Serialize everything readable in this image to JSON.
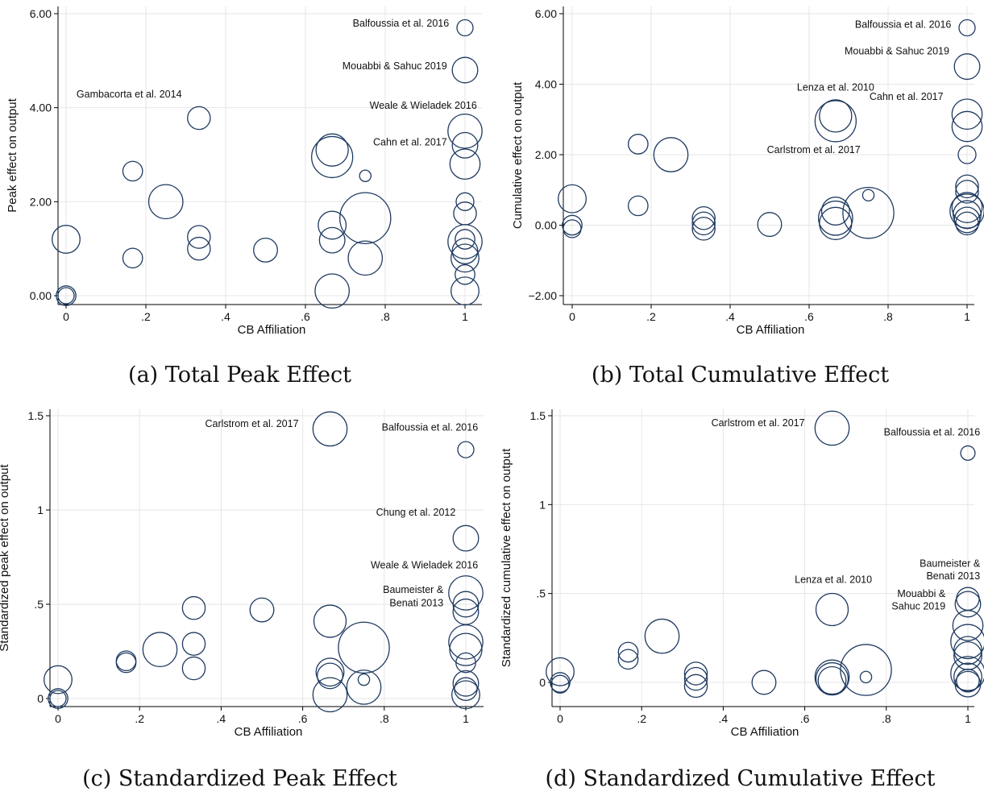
{
  "chart_data": [
    {
      "type": "scatter",
      "caption": "(a) Total Peak Effect",
      "xlabel": "CB Affiliation",
      "ylabel": "Peak effect on output",
      "xlim": [
        0,
        1
      ],
      "ylim": [
        0,
        6
      ],
      "xticks": [
        {
          "v": 0,
          "label": "0"
        },
        {
          "v": 0.2,
          "label": ".2"
        },
        {
          "v": 0.4,
          "label": ".4"
        },
        {
          "v": 0.6,
          "label": ".6"
        },
        {
          "v": 0.8,
          "label": ".8"
        },
        {
          "v": 1,
          "label": "1"
        }
      ],
      "yticks": [
        {
          "v": 0,
          "label": "0.00"
        },
        {
          "v": 2,
          "label": "2.00"
        },
        {
          "v": 4,
          "label": "4.00"
        },
        {
          "v": 6,
          "label": "6.00"
        }
      ],
      "grid": true,
      "points": [
        {
          "x": 0,
          "y": 1.2,
          "w": 3
        },
        {
          "x": 0,
          "y": 0,
          "w": 1.5
        },
        {
          "x": 0,
          "y": 0,
          "w": 1
        },
        {
          "x": 0.167,
          "y": 2.65,
          "w": 1.5
        },
        {
          "x": 0.167,
          "y": 0.8,
          "w": 1.5
        },
        {
          "x": 0.25,
          "y": 2.0,
          "w": 4.5
        },
        {
          "x": 0.333,
          "y": 3.78,
          "w": 2
        },
        {
          "x": 0.333,
          "y": 1.25,
          "w": 2
        },
        {
          "x": 0.333,
          "y": 1.0,
          "w": 2
        },
        {
          "x": 0.5,
          "y": 0.97,
          "w": 2.2
        },
        {
          "x": 0.667,
          "y": 3.1,
          "w": 4
        },
        {
          "x": 0.667,
          "y": 2.95,
          "w": 6.5
        },
        {
          "x": 0.667,
          "y": 1.5,
          "w": 3
        },
        {
          "x": 0.667,
          "y": 1.18,
          "w": 2.5
        },
        {
          "x": 0.667,
          "y": 0.1,
          "w": 4.5
        },
        {
          "x": 0.75,
          "y": 2.55,
          "w": 0.5
        },
        {
          "x": 0.75,
          "y": 1.65,
          "w": 10
        },
        {
          "x": 0.75,
          "y": 0.8,
          "w": 4.5
        },
        {
          "x": 1,
          "y": 5.7,
          "w": 1
        },
        {
          "x": 1,
          "y": 4.8,
          "w": 2.5
        },
        {
          "x": 1,
          "y": 3.5,
          "w": 4.5
        },
        {
          "x": 1,
          "y": 3.2,
          "w": 2.5
        },
        {
          "x": 1,
          "y": 2.8,
          "w": 3.5
        },
        {
          "x": 1,
          "y": 2.0,
          "w": 1.2
        },
        {
          "x": 1,
          "y": 1.75,
          "w": 2
        },
        {
          "x": 1,
          "y": 1.2,
          "w": 1.5
        },
        {
          "x": 1,
          "y": 1.15,
          "w": 4.5
        },
        {
          "x": 1,
          "y": 0.95,
          "w": 2.5
        },
        {
          "x": 1,
          "y": 0.8,
          "w": 3
        },
        {
          "x": 1,
          "y": 0.45,
          "w": 1.5
        },
        {
          "x": 1,
          "y": 0.1,
          "w": 3
        }
      ],
      "annotations": [
        {
          "text": "Balfoussia et al. 2016",
          "x": 0.96,
          "y": 5.73
        },
        {
          "text": "Mouabbi & Sahuc 2019",
          "x": 0.955,
          "y": 4.82
        },
        {
          "text": "Gambacorta et al. 2014",
          "x": 0.29,
          "y": 4.22
        },
        {
          "text": "Weale & Wieladek 2016",
          "x": 1.03,
          "y": 3.98
        },
        {
          "text": "Cahn et al. 2017",
          "x": 0.955,
          "y": 3.2
        }
      ]
    },
    {
      "type": "scatter",
      "caption": "(b) Total Cumulative Effect",
      "xlabel": "CB Affiliation",
      "ylabel": "Cumulative effect on output",
      "xlim": [
        0,
        1
      ],
      "ylim": [
        -2,
        6
      ],
      "xticks": [
        {
          "v": 0,
          "label": "0"
        },
        {
          "v": 0.2,
          "label": ".2"
        },
        {
          "v": 0.4,
          "label": ".4"
        },
        {
          "v": 0.6,
          "label": ".6"
        },
        {
          "v": 0.8,
          "label": ".8"
        },
        {
          "v": 1,
          "label": "1"
        }
      ],
      "yticks": [
        {
          "v": -2,
          "label": "−2.00"
        },
        {
          "v": 0,
          "label": "0.00"
        },
        {
          "v": 2,
          "label": "2.00"
        },
        {
          "v": 4,
          "label": "4.00"
        },
        {
          "v": 6,
          "label": "6.00"
        }
      ],
      "grid": true,
      "points": [
        {
          "x": 0,
          "y": 0.75,
          "w": 3
        },
        {
          "x": 0,
          "y": 0,
          "w": 1.5
        },
        {
          "x": 0,
          "y": -0.1,
          "w": 1.2
        },
        {
          "x": 0.167,
          "y": 2.3,
          "w": 1.5
        },
        {
          "x": 0.167,
          "y": 0.55,
          "w": 1.5
        },
        {
          "x": 0.25,
          "y": 2.0,
          "w": 4.5
        },
        {
          "x": 0.333,
          "y": 0.2,
          "w": 2
        },
        {
          "x": 0.333,
          "y": 0.05,
          "w": 2
        },
        {
          "x": 0.333,
          "y": -0.1,
          "w": 2
        },
        {
          "x": 0.5,
          "y": 0.02,
          "w": 2.2
        },
        {
          "x": 0.667,
          "y": 3.1,
          "w": 4
        },
        {
          "x": 0.667,
          "y": 2.95,
          "w": 6.5
        },
        {
          "x": 0.667,
          "y": 0.4,
          "w": 3
        },
        {
          "x": 0.667,
          "y": 0.2,
          "w": 4.5
        },
        {
          "x": 0.667,
          "y": 0.05,
          "w": 4
        },
        {
          "x": 0.75,
          "y": 0.85,
          "w": 0.5
        },
        {
          "x": 0.75,
          "y": 0.35,
          "w": 10
        },
        {
          "x": 1,
          "y": 5.6,
          "w": 1
        },
        {
          "x": 1,
          "y": 4.5,
          "w": 2.5
        },
        {
          "x": 1,
          "y": 3.15,
          "w": 3.5
        },
        {
          "x": 1,
          "y": 2.8,
          "w": 3.5
        },
        {
          "x": 1,
          "y": 2.0,
          "w": 1.2
        },
        {
          "x": 1,
          "y": 1.1,
          "w": 2
        },
        {
          "x": 1,
          "y": 0.95,
          "w": 2
        },
        {
          "x": 1,
          "y": 0.5,
          "w": 3.5
        },
        {
          "x": 1,
          "y": 0.4,
          "w": 4.5
        },
        {
          "x": 1,
          "y": 0.3,
          "w": 3
        },
        {
          "x": 1,
          "y": 0.15,
          "w": 2.5
        },
        {
          "x": 1,
          "y": 0.05,
          "w": 2
        }
      ],
      "annotations": [
        {
          "text": "Balfoussia et al. 2016",
          "x": 0.96,
          "y": 5.6
        },
        {
          "text": "Mouabbi & Sahuc 2019",
          "x": 0.955,
          "y": 4.85
        },
        {
          "text": "Lenza et al. 2010",
          "x": 0.765,
          "y": 3.82
        },
        {
          "text": "Cahn et al. 2017",
          "x": 0.94,
          "y": 3.55
        },
        {
          "text": "Carlstrom et al. 2017",
          "x": 0.73,
          "y": 2.05
        }
      ]
    },
    {
      "type": "scatter",
      "caption": "(c) Standardized Peak Effect",
      "xlabel": "CB Affiliation",
      "ylabel": "Standardized peak effect on output",
      "xlim": [
        0,
        1
      ],
      "ylim": [
        0,
        1.5
      ],
      "xticks": [
        {
          "v": 0,
          "label": "0"
        },
        {
          "v": 0.2,
          "label": ".2"
        },
        {
          "v": 0.4,
          "label": ".4"
        },
        {
          "v": 0.6,
          "label": ".6"
        },
        {
          "v": 0.8,
          "label": ".8"
        },
        {
          "v": 1,
          "label": "1"
        }
      ],
      "yticks": [
        {
          "v": 0,
          "label": "0"
        },
        {
          "v": 0.5,
          "label": ".5"
        },
        {
          "v": 1,
          "label": "1"
        },
        {
          "v": 1.5,
          "label": "1.5"
        }
      ],
      "grid": true,
      "points": [
        {
          "x": 0,
          "y": 0.1,
          "w": 3
        },
        {
          "x": 0,
          "y": 0,
          "w": 1.5
        },
        {
          "x": 0,
          "y": 0,
          "w": 1
        },
        {
          "x": 0.167,
          "y": 0.2,
          "w": 1.5
        },
        {
          "x": 0.167,
          "y": 0.19,
          "w": 1.5
        },
        {
          "x": 0.25,
          "y": 0.26,
          "w": 4.5
        },
        {
          "x": 0.333,
          "y": 0.48,
          "w": 2
        },
        {
          "x": 0.333,
          "y": 0.29,
          "w": 2
        },
        {
          "x": 0.333,
          "y": 0.16,
          "w": 2
        },
        {
          "x": 0.5,
          "y": 0.47,
          "w": 2.2
        },
        {
          "x": 0.667,
          "y": 1.43,
          "w": 4.5
        },
        {
          "x": 0.667,
          "y": 0.41,
          "w": 4
        },
        {
          "x": 0.667,
          "y": 0.14,
          "w": 3
        },
        {
          "x": 0.667,
          "y": 0.12,
          "w": 2.5
        },
        {
          "x": 0.667,
          "y": 0.02,
          "w": 4.5
        },
        {
          "x": 0.75,
          "y": 0.27,
          "w": 10
        },
        {
          "x": 0.75,
          "y": 0.1,
          "w": 0.5
        },
        {
          "x": 0.75,
          "y": 0.06,
          "w": 4.5
        },
        {
          "x": 1,
          "y": 1.32,
          "w": 1
        },
        {
          "x": 1,
          "y": 0.85,
          "w": 2.5
        },
        {
          "x": 1,
          "y": 0.56,
          "w": 4.5
        },
        {
          "x": 1,
          "y": 0.5,
          "w": 2.5
        },
        {
          "x": 1,
          "y": 0.46,
          "w": 2.5
        },
        {
          "x": 1,
          "y": 0.3,
          "w": 4.5
        },
        {
          "x": 1,
          "y": 0.26,
          "w": 4
        },
        {
          "x": 1,
          "y": 0.19,
          "w": 1.5
        },
        {
          "x": 1,
          "y": 0.08,
          "w": 2.5
        },
        {
          "x": 1,
          "y": 0.05,
          "w": 2
        },
        {
          "x": 1,
          "y": 0.02,
          "w": 3
        }
      ],
      "annotations": [
        {
          "text": "Carlstrom et al. 2017",
          "x": 0.59,
          "y": 1.44
        },
        {
          "text": "Balfoussia et al. 2016",
          "x": 1.03,
          "y": 1.42
        },
        {
          "text": "Chung et al. 2012",
          "x": 0.975,
          "y": 0.97
        },
        {
          "text": "Weale & Wieladek 2016",
          "x": 1.03,
          "y": 0.69
        },
        {
          "text": "Baumeister &",
          "x": 0.945,
          "y": 0.56
        },
        {
          "text": "Benati 2013",
          "x": 0.945,
          "y": 0.49
        }
      ]
    },
    {
      "type": "scatter",
      "caption": "(d) Standardized Cumulative Effect",
      "xlabel": "CB Affiliation",
      "ylabel": "Standardized cumulative effect on output",
      "xlim": [
        0,
        1
      ],
      "ylim": [
        0,
        1.5
      ],
      "xticks": [
        {
          "v": 0,
          "label": "0"
        },
        {
          "v": 0.2,
          "label": ".2"
        },
        {
          "v": 0.4,
          "label": ".4"
        },
        {
          "v": 0.6,
          "label": ".6"
        },
        {
          "v": 0.8,
          "label": ".8"
        },
        {
          "v": 1,
          "label": "1"
        }
      ],
      "yticks": [
        {
          "v": 0,
          "label": "0"
        },
        {
          "v": 0.5,
          "label": ".5"
        },
        {
          "v": 1,
          "label": "1"
        },
        {
          "v": 1.5,
          "label": "1.5"
        }
      ],
      "grid": true,
      "points": [
        {
          "x": 0,
          "y": 0.06,
          "w": 3
        },
        {
          "x": 0,
          "y": 0,
          "w": 1.5
        },
        {
          "x": 0,
          "y": -0.01,
          "w": 1.2
        },
        {
          "x": 0.167,
          "y": 0.17,
          "w": 1.5
        },
        {
          "x": 0.167,
          "y": 0.13,
          "w": 1.5
        },
        {
          "x": 0.25,
          "y": 0.26,
          "w": 4.5
        },
        {
          "x": 0.333,
          "y": 0.05,
          "w": 2
        },
        {
          "x": 0.333,
          "y": 0.02,
          "w": 2
        },
        {
          "x": 0.333,
          "y": -0.02,
          "w": 2
        },
        {
          "x": 0.5,
          "y": 0,
          "w": 2.2
        },
        {
          "x": 0.667,
          "y": 1.43,
          "w": 4.5
        },
        {
          "x": 0.667,
          "y": 0.41,
          "w": 4
        },
        {
          "x": 0.667,
          "y": 0.03,
          "w": 4.5
        },
        {
          "x": 0.667,
          "y": 0.02,
          "w": 4
        },
        {
          "x": 0.667,
          "y": 0.01,
          "w": 3
        },
        {
          "x": 0.75,
          "y": 0.07,
          "w": 10
        },
        {
          "x": 0.75,
          "y": 0.03,
          "w": 0.5
        },
        {
          "x": 1,
          "y": 1.29,
          "w": 0.8
        },
        {
          "x": 1,
          "y": 0.47,
          "w": 2
        },
        {
          "x": 1,
          "y": 0.44,
          "w": 2.5
        },
        {
          "x": 1,
          "y": 0.32,
          "w": 3.5
        },
        {
          "x": 1,
          "y": 0.23,
          "w": 4.5
        },
        {
          "x": 1,
          "y": 0.18,
          "w": 3
        },
        {
          "x": 1,
          "y": 0.15,
          "w": 3
        },
        {
          "x": 1,
          "y": 0.05,
          "w": 4.5
        },
        {
          "x": 1,
          "y": 0.03,
          "w": 3
        },
        {
          "x": 1,
          "y": 0.01,
          "w": 2
        },
        {
          "x": 1,
          "y": -0.01,
          "w": 2.5
        }
      ],
      "annotations": [
        {
          "text": "Carlstrom et al. 2017",
          "x": 0.6,
          "y": 1.44
        },
        {
          "text": "Balfoussia et al. 2016",
          "x": 1.03,
          "y": 1.39
        },
        {
          "text": "Lenza et al. 2010",
          "x": 0.765,
          "y": 0.56
        },
        {
          "text": "Baumeister &",
          "x": 1.03,
          "y": 0.65
        },
        {
          "text": "Benati 2013",
          "x": 1.03,
          "y": 0.58
        },
        {
          "text": "Mouabbi &",
          "x": 0.945,
          "y": 0.48
        },
        {
          "text": "Sahuc 2019",
          "x": 0.945,
          "y": 0.41
        }
      ]
    }
  ],
  "colors": {
    "marker": "#1f3a60",
    "grid": "#e6e6e6",
    "axis": "#000000",
    "text": "#111111"
  }
}
